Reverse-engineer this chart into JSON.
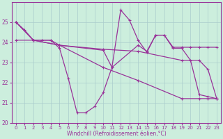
{
  "xlabel": "Windchill (Refroidissement éolien,°C)",
  "bg_color": "#cceedd",
  "grid_color": "#aacccc",
  "line_color": "#993399",
  "xlim": [
    -0.5,
    23.5
  ],
  "ylim": [
    20,
    26
  ],
  "yticks": [
    20,
    21,
    22,
    23,
    24,
    25
  ],
  "xticks": [
    0,
    1,
    2,
    3,
    4,
    5,
    6,
    7,
    8,
    9,
    10,
    11,
    12,
    13,
    14,
    15,
    16,
    17,
    18,
    19,
    20,
    21,
    22,
    23
  ],
  "line1_x": [
    0,
    1,
    2,
    3,
    4,
    5,
    6,
    7,
    8,
    9,
    10,
    11,
    12,
    13,
    14,
    15,
    16,
    17,
    18,
    19,
    20,
    21,
    22,
    23
  ],
  "line1_y": [
    25.0,
    24.6,
    24.1,
    24.1,
    24.1,
    23.7,
    22.2,
    20.5,
    20.5,
    20.8,
    21.5,
    22.75,
    25.6,
    25.1,
    24.1,
    23.5,
    24.35,
    24.35,
    23.7,
    23.7,
    23.1,
    21.4,
    21.3,
    21.2
  ],
  "line2_x": [
    0,
    2,
    3,
    4,
    5,
    10,
    11,
    14,
    15,
    16,
    17,
    18,
    19,
    20,
    21,
    22,
    23
  ],
  "line2_y": [
    25.0,
    24.1,
    24.1,
    24.1,
    23.85,
    23.6,
    22.75,
    23.85,
    23.55,
    24.35,
    24.35,
    23.75,
    23.75,
    23.75,
    23.75,
    23.75,
    23.75
  ],
  "line3_x": [
    0,
    2,
    5,
    10,
    14,
    19,
    21,
    22,
    23
  ],
  "line3_y": [
    24.1,
    24.1,
    23.85,
    23.65,
    23.55,
    23.1,
    23.1,
    22.65,
    21.2
  ],
  "line4_x": [
    0,
    2,
    5,
    10,
    14,
    19,
    21,
    22,
    23
  ],
  "line4_y": [
    25.0,
    24.1,
    23.85,
    22.75,
    22.1,
    21.2,
    21.2,
    21.2,
    21.2
  ]
}
